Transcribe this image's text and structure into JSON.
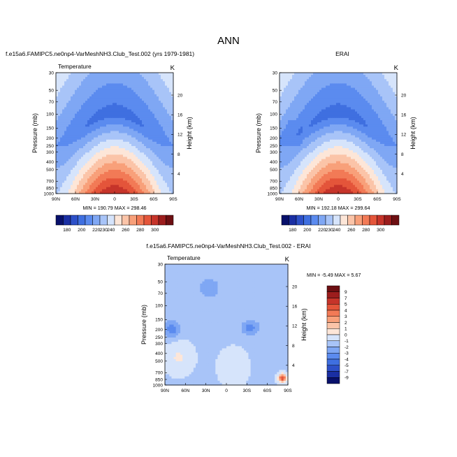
{
  "figure_title": "ANN",
  "colors": {
    "temp_levels": [
      "#08106b",
      "#1a2fa3",
      "#2d50c8",
      "#3f6fe0",
      "#5b8bef",
      "#7fa7f4",
      "#a8c4f8",
      "#d6e4fb",
      "#fde6d8",
      "#fbc4a8",
      "#f8a07a",
      "#f27a56",
      "#e4553a",
      "#c6342a",
      "#9c1d1d",
      "#6d0f12"
    ],
    "diff_levels": [
      "#08106b",
      "#1a2fa3",
      "#2d50c8",
      "#3f6fe0",
      "#5b8bef",
      "#7fa7f4",
      "#a8c4f8",
      "#d6e4fb",
      "#fde6d8",
      "#fbc4a8",
      "#f8a07a",
      "#f27a56",
      "#e4553a",
      "#c6342a",
      "#9c1d1d",
      "#6d0f12"
    ]
  },
  "chart_data": [
    {
      "type": "heatmap",
      "panel_title": "f.e15a6.FAMIPC5.ne0np4-VarMeshNH3.Club_Test.002 (yrs 1979-1981)",
      "left_label": "Temperature",
      "right_label": "K",
      "xlabel": "",
      "ylabel": "Pressure (mb)",
      "y2label": "Height (km)",
      "x_ticks": [
        "90N",
        "60N",
        "30N",
        "0",
        "30S",
        "60S",
        "90S"
      ],
      "y_ticks": [
        "30",
        "50",
        "70",
        "100",
        "150",
        "200",
        "250",
        "300",
        "400",
        "500",
        "700",
        "850",
        "1000"
      ],
      "y2_ticks": [
        "20",
        "16",
        "12",
        "8",
        "4"
      ],
      "stats": "MIN = 190.79  MAX = 298.46",
      "colorbar_labels": [
        "180",
        "190",
        "200",
        "210",
        "220",
        "230",
        "240",
        "250",
        "260",
        "270",
        "280",
        "290",
        "300"
      ],
      "min": 190.79,
      "max": 298.46
    },
    {
      "type": "heatmap",
      "panel_title": "ERAI",
      "left_label": "",
      "right_label": "K",
      "xlabel": "",
      "ylabel": "Pressure (mb)",
      "y2label": "Height (km)",
      "x_ticks": [
        "90N",
        "60N",
        "30N",
        "0",
        "30S",
        "60S",
        "90S"
      ],
      "y_ticks": [
        "30",
        "50",
        "70",
        "100",
        "150",
        "200",
        "250",
        "300",
        "400",
        "500",
        "700",
        "850",
        "1000"
      ],
      "y2_ticks": [
        "20",
        "16",
        "12",
        "8",
        "4"
      ],
      "stats": "MIN = 192.18  MAX = 299.64",
      "colorbar_labels": [
        "180",
        "190",
        "200",
        "210",
        "220",
        "230",
        "240",
        "250",
        "260",
        "270",
        "280",
        "290",
        "300"
      ],
      "min": 192.18,
      "max": 299.64
    },
    {
      "type": "heatmap",
      "panel_title": "f.e15a6.FAMIPC5.ne0np4-VarMeshNH3.Club_Test.002 - ERAI",
      "left_label": "Temperature",
      "right_label": "K",
      "xlabel": "",
      "ylabel": "Pressure (mb)",
      "y2label": "Height (km)",
      "x_ticks": [
        "90N",
        "60N",
        "30N",
        "0",
        "30S",
        "60S",
        "90S"
      ],
      "y_ticks": [
        "30",
        "50",
        "70",
        "100",
        "150",
        "200",
        "250",
        "300",
        "400",
        "500",
        "700",
        "850",
        "1000"
      ],
      "y2_ticks": [
        "20",
        "16",
        "12",
        "8",
        "4"
      ],
      "stats": "MIN = -5.49  MAX =  5.67",
      "colorbar_labels": [
        "9",
        "7",
        "5",
        "4",
        "3",
        "2",
        "1",
        "0",
        "-1",
        "-2",
        "-3",
        "-4",
        "-5",
        "-7",
        "-9"
      ],
      "min": -5.49,
      "max": 5.67
    }
  ]
}
